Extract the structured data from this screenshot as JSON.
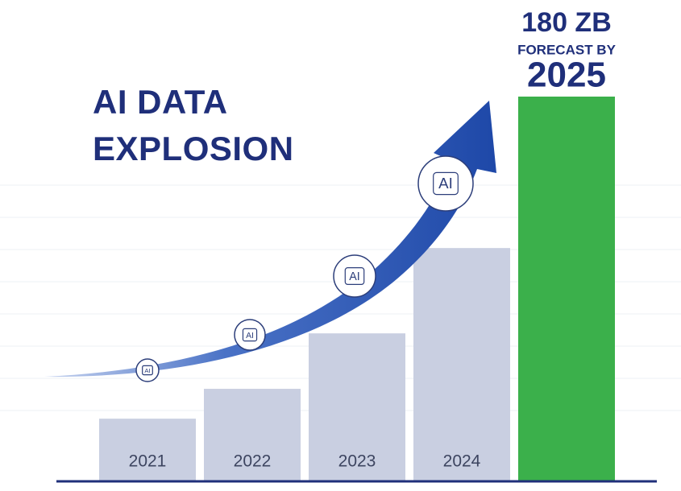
{
  "chart_data": {
    "type": "bar",
    "title": "AI DATA EXPLOSION",
    "categories": [
      "2021",
      "2022",
      "2023",
      "2024",
      "2025"
    ],
    "values": [
      29,
      43,
      69,
      109,
      180
    ],
    "value_labels": [
      null,
      null,
      null,
      null,
      "180 ZB"
    ],
    "colors": [
      "#c9cfe1",
      "#c9cfe1",
      "#c9cfe1",
      "#c9cfe1",
      "#3bb04b"
    ],
    "annotation": "FORECAST BY",
    "icon_label": "AI",
    "ylim": [
      0,
      180
    ]
  }
}
